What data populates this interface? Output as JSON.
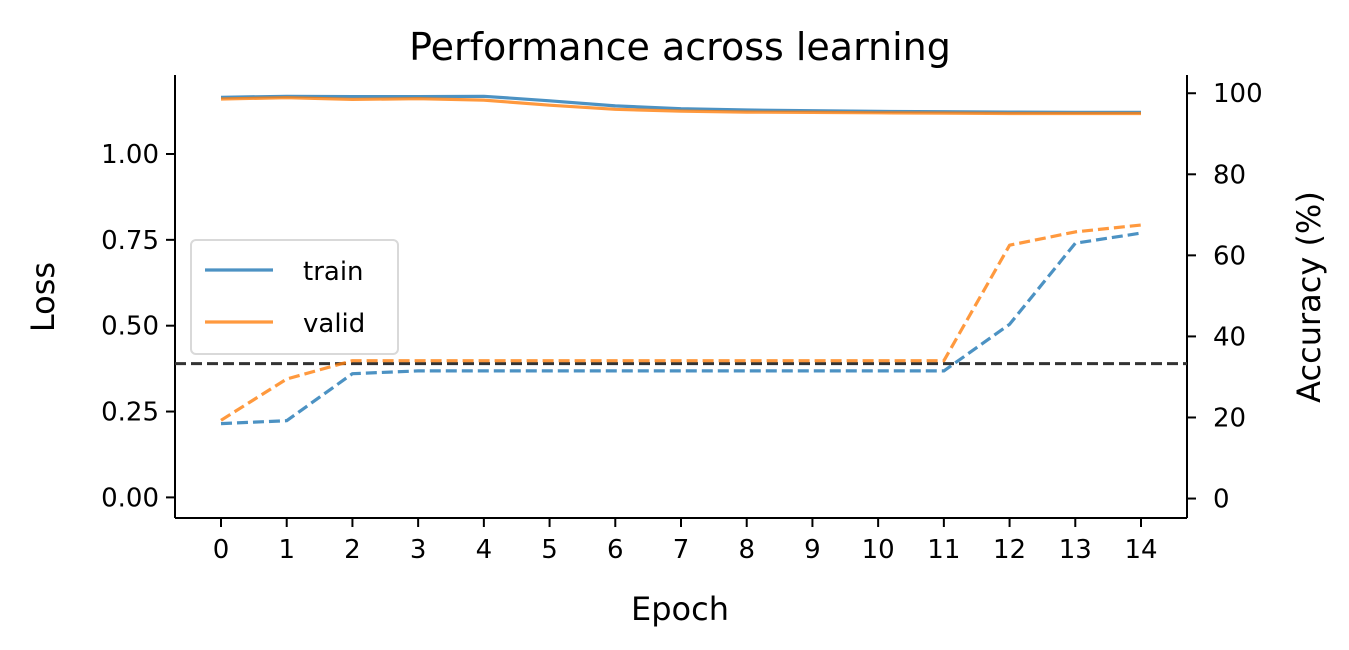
{
  "chart_data": {
    "type": "line",
    "title": "Performance across learning",
    "xlabel": "Epoch",
    "ylabel": "Loss",
    "y2label": "Accuracy (%)",
    "x": [
      0,
      1,
      2,
      3,
      4,
      5,
      6,
      7,
      8,
      9,
      10,
      11,
      12,
      13,
      14
    ],
    "xlim": [
      -0.7,
      14.7
    ],
    "ylim": [
      -0.06,
      1.23
    ],
    "y2lim": [
      -4.8,
      104.5
    ],
    "y_ticks": [
      "0.00",
      "0.25",
      "0.50",
      "0.75",
      "1.00"
    ],
    "y2_ticks": [
      "0",
      "20",
      "40",
      "60",
      "80",
      "100"
    ],
    "legend_position": "center-left",
    "grid": false,
    "colors": {
      "train": "#1f77b4",
      "valid": "#ff7f0e",
      "reference": "#333333"
    },
    "series": [
      {
        "name": "train",
        "axis": "loss",
        "style": "solid",
        "values": [
          1.165,
          1.168,
          1.167,
          1.167,
          1.168,
          1.155,
          1.14,
          1.132,
          1.128,
          1.126,
          1.124,
          1.123,
          1.122,
          1.121,
          1.121
        ]
      },
      {
        "name": "valid",
        "axis": "loss",
        "style": "solid",
        "values": [
          1.16,
          1.164,
          1.159,
          1.161,
          1.157,
          1.142,
          1.13,
          1.125,
          1.122,
          1.121,
          1.12,
          1.119,
          1.118,
          1.118,
          1.118
        ]
      },
      {
        "axis": "accuracy",
        "style": "dashed",
        "color_of": "train",
        "values": [
          18.5,
          19.2,
          30.8,
          31.5,
          31.5,
          31.5,
          31.5,
          31.5,
          31.5,
          31.5,
          31.5,
          31.5,
          43.0,
          63.0,
          65.5
        ]
      },
      {
        "axis": "accuracy",
        "style": "dashed",
        "color_of": "valid",
        "values": [
          19.3,
          29.5,
          34.0,
          34.0,
          34.0,
          34.0,
          34.0,
          34.0,
          34.0,
          34.0,
          34.0,
          34.0,
          62.5,
          65.8,
          67.5
        ]
      }
    ],
    "reference_line": {
      "axis": "accuracy",
      "value": 33.3,
      "style": "dashed"
    }
  }
}
